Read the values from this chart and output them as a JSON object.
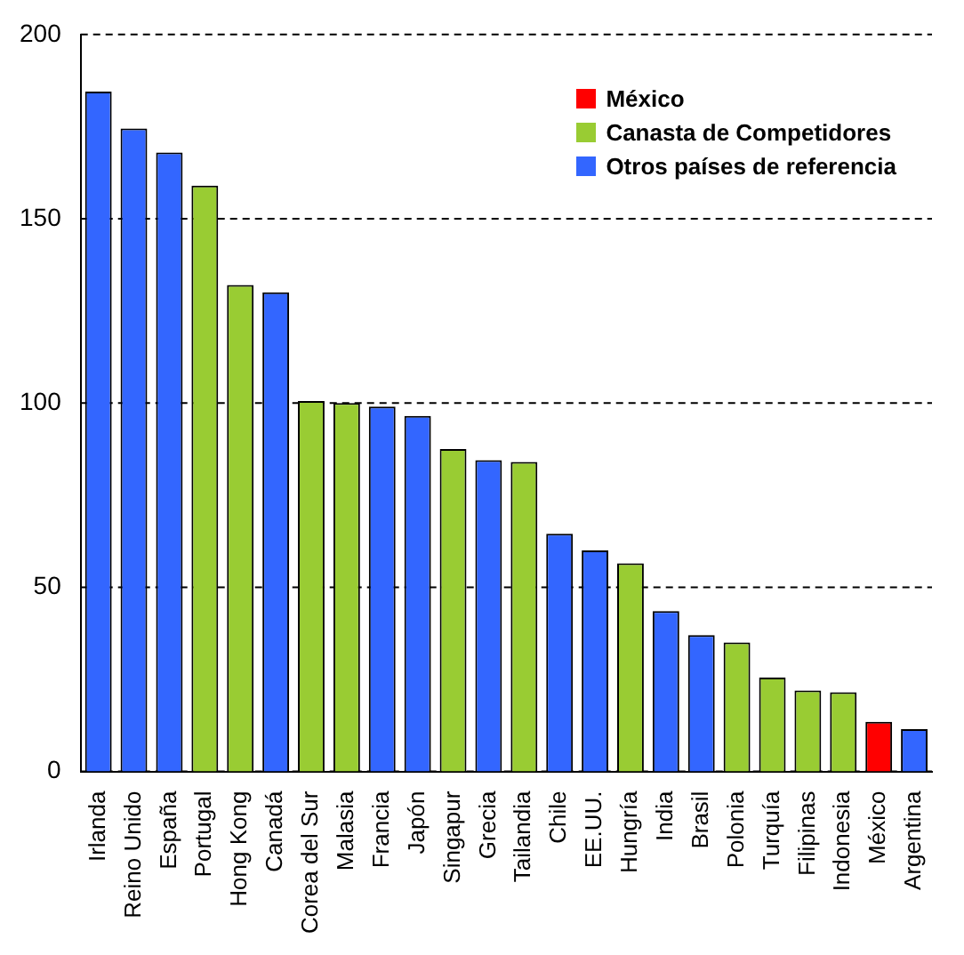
{
  "chart_data": {
    "type": "bar",
    "categories": [
      "Irlanda",
      "Reino Unido",
      "España",
      "Portugal",
      "Hong Kong",
      "Canadá",
      "Corea del Sur",
      "Malasia",
      "Francia",
      "Japón",
      "Singapur",
      "Grecia",
      "Tailandia",
      "Chile",
      "EE.UU.",
      "Hungría",
      "India",
      "Brasil",
      "Polonia",
      "Turquía",
      "Filipinas",
      "Indonesia",
      "México",
      "Argentina"
    ],
    "series": [
      {
        "name": "México",
        "color": "#ff0000",
        "values": [
          null,
          null,
          null,
          null,
          null,
          null,
          null,
          null,
          null,
          null,
          null,
          null,
          null,
          null,
          null,
          null,
          null,
          null,
          null,
          null,
          null,
          null,
          13.5,
          null
        ]
      },
      {
        "name": "Canasta de Competidores",
        "color": "#99cc33",
        "values": [
          null,
          null,
          null,
          159,
          132,
          null,
          100.5,
          100,
          null,
          null,
          87.5,
          null,
          84,
          null,
          null,
          56.5,
          null,
          null,
          35,
          25.5,
          22,
          21.5,
          null,
          null
        ]
      },
      {
        "name": "Otros países de referencia",
        "color": "#3366ff",
        "values": [
          184.5,
          174.5,
          168,
          null,
          null,
          130,
          null,
          null,
          99,
          96.5,
          null,
          84.5,
          null,
          64.5,
          60,
          null,
          43.5,
          37,
          null,
          null,
          null,
          null,
          null,
          11.5
        ]
      }
    ],
    "ylim": [
      0,
      200
    ],
    "yticks": [
      0,
      50,
      100,
      150,
      200
    ],
    "grid": "y",
    "legend": "top right"
  }
}
